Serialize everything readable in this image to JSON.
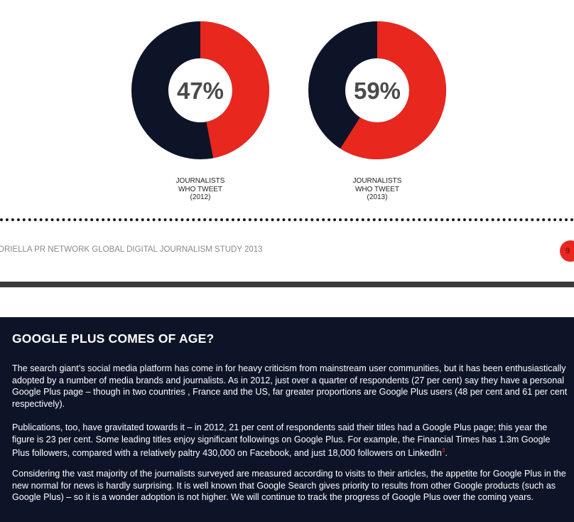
{
  "donuts": [
    {
      "percent_label": "47%",
      "value": 47,
      "caption_line1": "JOURNALISTS",
      "caption_line2": "WHO TWEET",
      "caption_line3": "(2012)"
    },
    {
      "percent_label": "59%",
      "value": 59,
      "caption_line1": "JOURNALISTS",
      "caption_line2": "WHO TWEET",
      "caption_line3": "(2013)"
    }
  ],
  "colors": {
    "accent_red": "#e8271f",
    "dark_navy": "#0e1428",
    "page_bg": "#ffffff"
  },
  "footer": {
    "text": "ORIELLA PR NETWORK GLOBAL DIGITAL JOURNALISM STUDY 2013",
    "page_number": "9"
  },
  "section": {
    "title": "GOOGLE PLUS COMES OF AGE?",
    "paragraph1": "The search giant’s social media platform has come in for heavy criticism from mainstream user communities, but it has been enthusiastically adopted by a number of media brands and journalists.  As in 2012, just over a quarter of respondents (27 per cent) say they have a personal Google Plus page – though in two countries , France and the US, far greater proportions are Google Plus users (48 per cent and 61 per cent respectively).",
    "paragraph2": "Publications, too, have gravitated towards it – in 2012, 21 per cent of respondents said their titles had a Google Plus page; this year the figure is 23 per cent.  Some leading titles enjoy significant followings on Google Plus.  For example, the Financial Times has 1.3m Google Plus followers, compared with a relatively paltry 430,000 on Facebook, and just 18,000 followers on LinkedIn",
    "paragraph2_footnote": "3",
    "paragraph2_end": ".",
    "paragraph3": "Considering the vast majority of the journalists surveyed are measured according to visits to their articles, the appetite for Google Plus in the new normal for news is hardly surprising.  It is well known that Google Search gives priority to results from other Google products (such as Google Plus) – so it is a wonder adoption is not higher.  We will continue to track the progress of Google Plus over the coming years."
  }
}
